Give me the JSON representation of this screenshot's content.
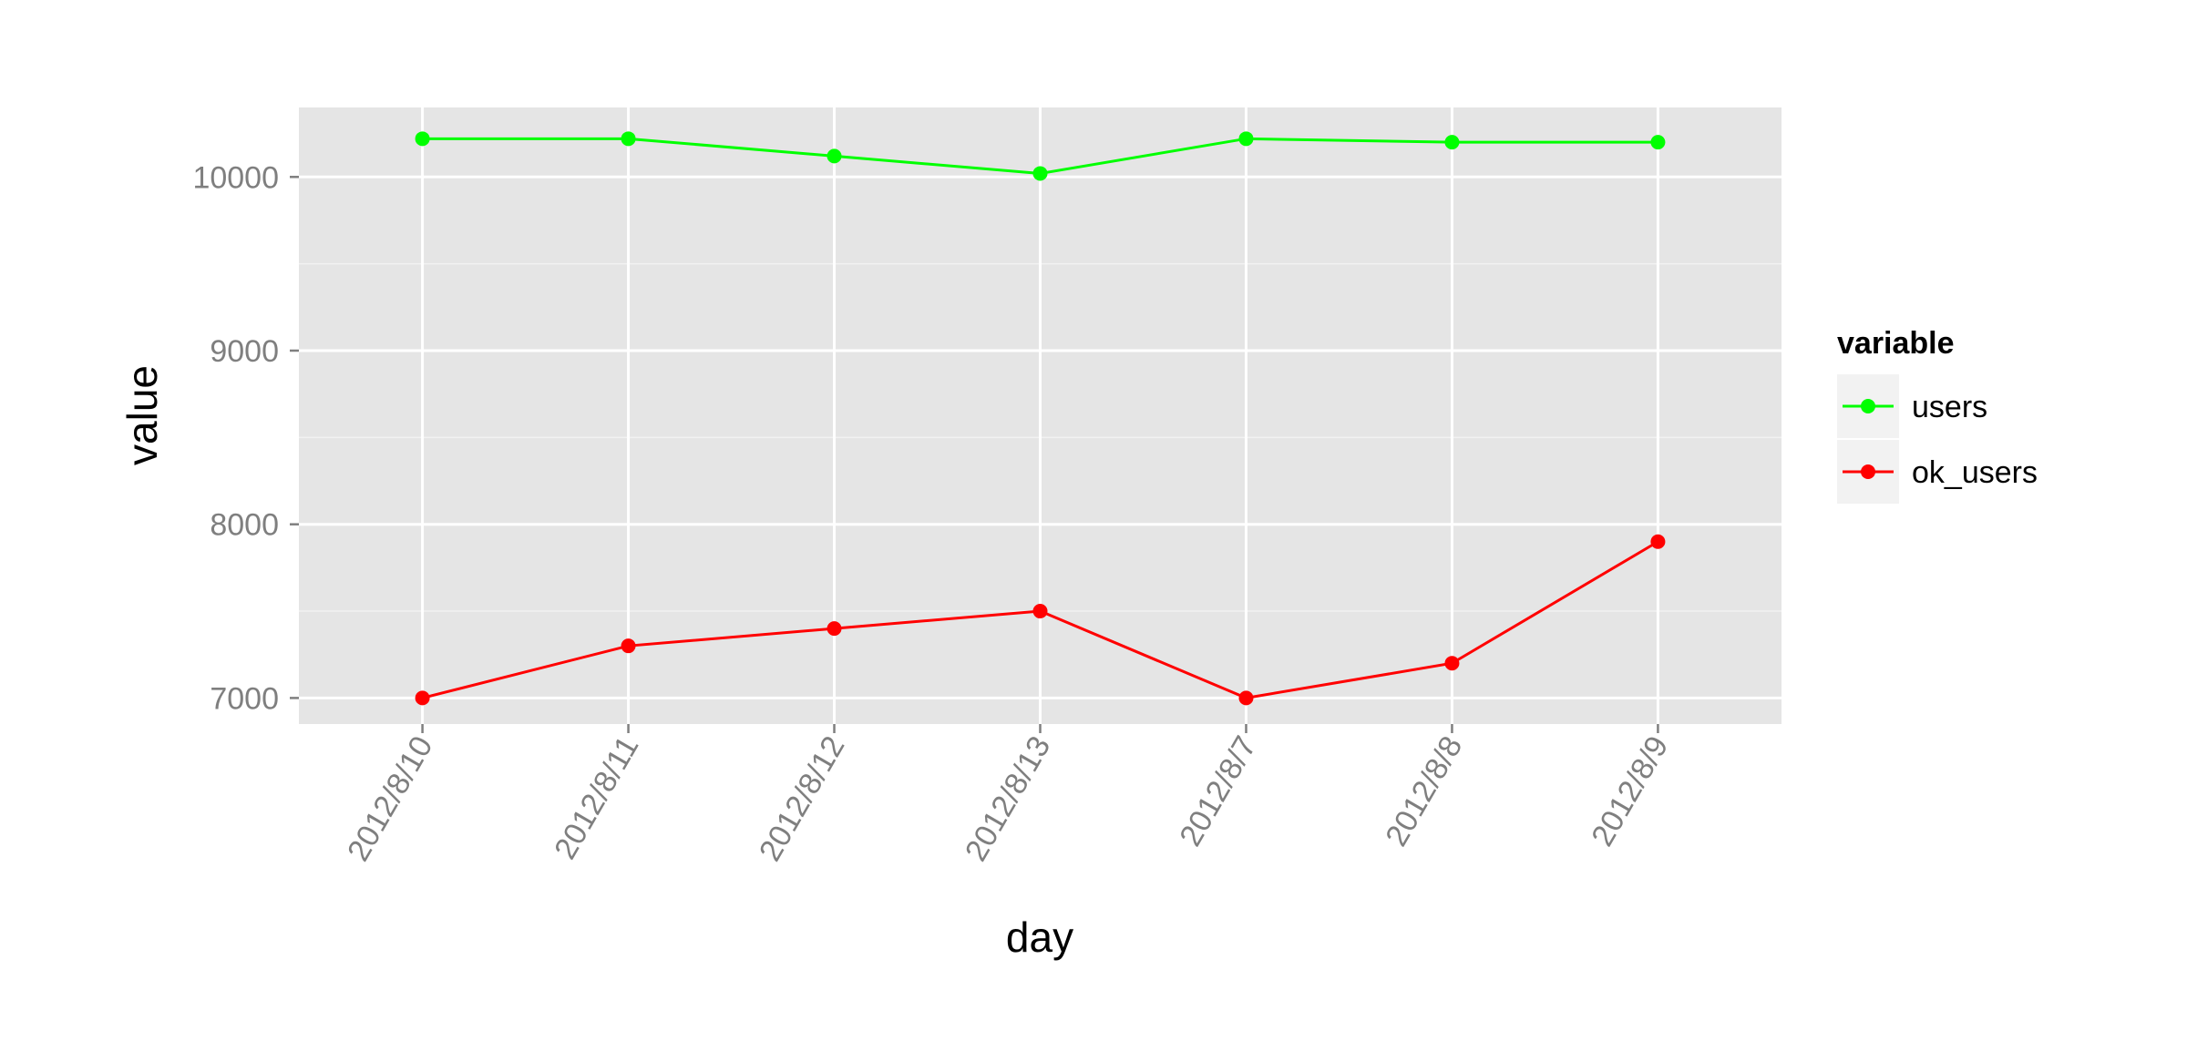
{
  "chart_data": {
    "type": "line",
    "title": "",
    "xlabel": "day",
    "ylabel": "value",
    "categories": [
      "2012/8/10",
      "2012/8/11",
      "2012/8/12",
      "2012/8/13",
      "2012/8/7",
      "2012/8/8",
      "2012/8/9"
    ],
    "series": [
      {
        "name": "users",
        "color": "#00ff00",
        "values": [
          10220,
          10220,
          10120,
          10020,
          10220,
          10200,
          10200
        ]
      },
      {
        "name": "ok_users",
        "color": "#ff0000",
        "values": [
          7000,
          7300,
          7400,
          7500,
          7000,
          7200,
          7900
        ]
      }
    ],
    "ylim": [
      6850,
      10400
    ],
    "yticks": [
      7000,
      8000,
      9000,
      10000
    ],
    "ytick_labels": [
      "7000",
      "8000",
      "9000",
      "10000"
    ],
    "grid": true,
    "legend": {
      "title": "variable",
      "placement": "right"
    },
    "panel_color": "#e5e5e5"
  }
}
